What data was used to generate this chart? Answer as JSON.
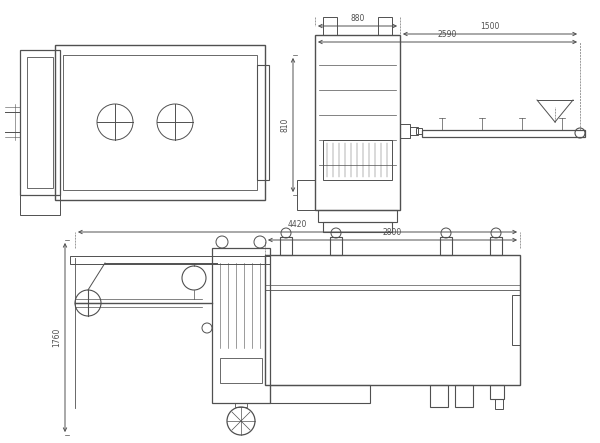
{
  "bg_color": "#ffffff",
  "line_color": "#505050",
  "dim_color": "#505050",
  "fig_width": 6.0,
  "fig_height": 4.43,
  "dpi": 100,
  "dimensions": {
    "top_height": "1760",
    "top_width1": "4420",
    "top_width2": "2800",
    "bot_right_height": "810",
    "bot_right_width1": "880",
    "bot_right_width2": "1500",
    "bot_right_width3": "2590"
  }
}
